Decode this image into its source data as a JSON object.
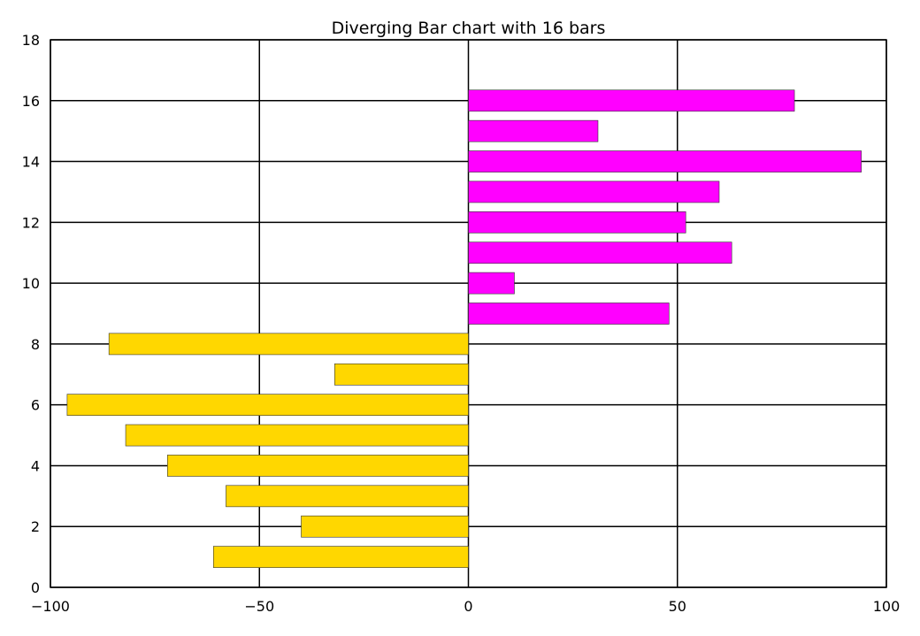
{
  "chart_data": {
    "type": "bar",
    "orientation": "horizontal",
    "title": "Diverging Bar chart with 16 bars",
    "xlabel": "",
    "ylabel": "",
    "xlim": [
      -100,
      100
    ],
    "ylim": [
      0,
      18
    ],
    "x_ticks": [
      -100,
      -50,
      0,
      50,
      100
    ],
    "x_tick_labels": [
      "−100",
      "−50",
      "0",
      "50",
      "100"
    ],
    "y_ticks": [
      0,
      2,
      4,
      6,
      8,
      10,
      12,
      14,
      16,
      18
    ],
    "y_tick_labels": [
      "0",
      "2",
      "4",
      "6",
      "8",
      "10",
      "12",
      "14",
      "16",
      "18"
    ],
    "grid": true,
    "bar_height": 0.7,
    "colors": {
      "negative": "#ffd700",
      "positive": "#ff00ff",
      "edge": "#333333"
    },
    "bars": [
      {
        "y": 1,
        "value": -61
      },
      {
        "y": 2,
        "value": -40
      },
      {
        "y": 3,
        "value": -58
      },
      {
        "y": 4,
        "value": -72
      },
      {
        "y": 5,
        "value": -82
      },
      {
        "y": 6,
        "value": -96
      },
      {
        "y": 7,
        "value": -32
      },
      {
        "y": 8,
        "value": -86
      },
      {
        "y": 9,
        "value": 48
      },
      {
        "y": 10,
        "value": 11
      },
      {
        "y": 11,
        "value": 63
      },
      {
        "y": 12,
        "value": 52
      },
      {
        "y": 13,
        "value": 60
      },
      {
        "y": 14,
        "value": 94
      },
      {
        "y": 15,
        "value": 31
      },
      {
        "y": 16,
        "value": 78
      }
    ]
  }
}
